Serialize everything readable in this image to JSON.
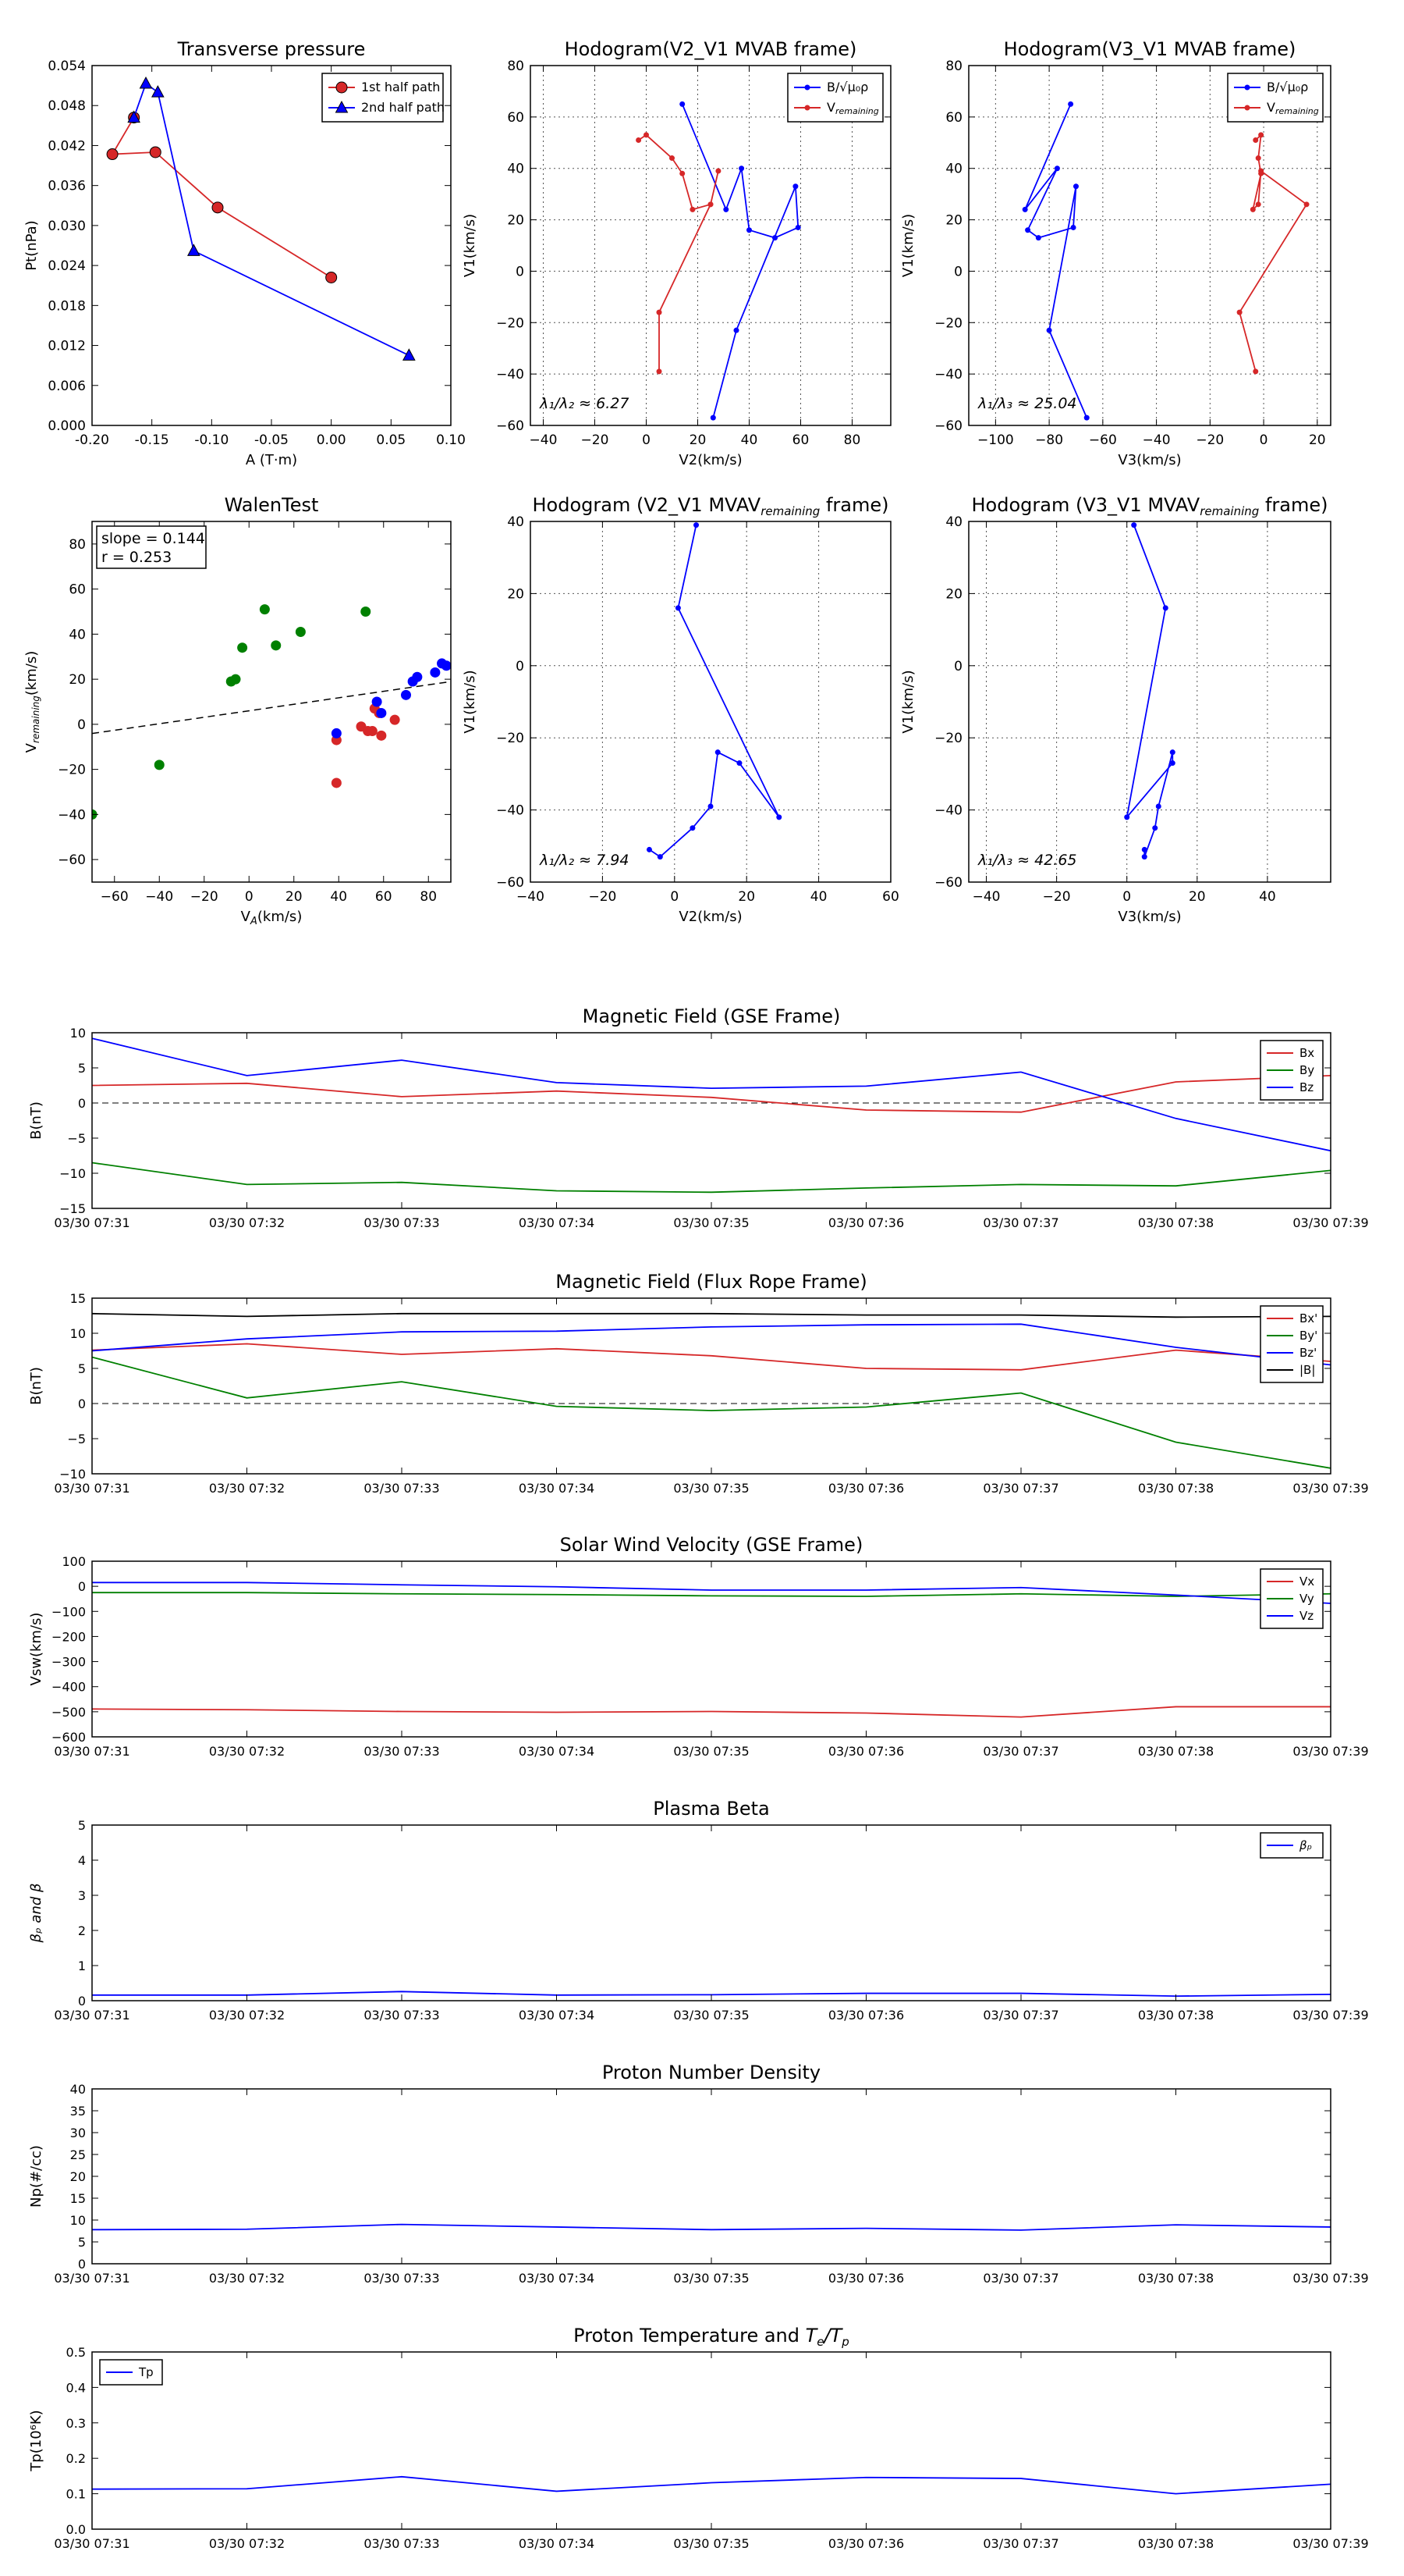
{
  "charts": {
    "c1": {
      "type": "line",
      "title": "Transverse pressure",
      "xlabel": "A (T·m)",
      "ylabel": "Pt(nPa)",
      "xlim": [
        -0.2,
        0.1
      ],
      "ylim": [
        0.0,
        0.054
      ],
      "xticks": [
        -0.2,
        -0.15,
        -0.1,
        -0.05,
        0.0,
        0.05,
        0.1
      ],
      "xtick_labels": [
        "-0.20",
        "-0.15",
        "-0.10",
        "-0.05",
        "0.00",
        "0.05",
        "0.10"
      ],
      "yticks": [
        0,
        0.006,
        0.012,
        0.018,
        0.024,
        0.03,
        0.036,
        0.042,
        0.048,
        0.054
      ],
      "ytick_labels": [
        "0.000",
        "0.006",
        "0.012",
        "0.018",
        "0.024",
        "0.030",
        "0.036",
        "0.042",
        "0.048",
        "0.054"
      ],
      "grid": false,
      "legend": "top-right",
      "series": [
        {
          "name": "1st half path",
          "color": "#d62728",
          "marker": "circle",
          "x": [
            0.0,
            -0.095,
            -0.147,
            -0.183,
            -0.165
          ],
          "y": [
            0.0222,
            0.0327,
            0.041,
            0.0407,
            0.0462
          ]
        },
        {
          "name": "2nd half path",
          "color": "#0000ff",
          "marker": "triangle",
          "x": [
            -0.165,
            -0.155,
            -0.145,
            -0.115,
            0.065
          ],
          "y": [
            0.0462,
            0.0513,
            0.05,
            0.0262,
            0.0105
          ]
        }
      ]
    },
    "c2": {
      "type": "line",
      "title": "Hodogram(V2_V1 MVAB frame)",
      "xlabel": "V2(km/s)",
      "ylabel": "V1(km/s)",
      "xlim": [
        -45,
        95
      ],
      "ylim": [
        -60,
        80
      ],
      "xticks": [
        -40,
        -20,
        0,
        20,
        40,
        60,
        80
      ],
      "xtick_labels": [
        "−40",
        "−20",
        "0",
        "20",
        "40",
        "60",
        "80"
      ],
      "yticks": [
        -60,
        -40,
        -20,
        0,
        20,
        40,
        60,
        80
      ],
      "ytick_labels": [
        "−60",
        "−40",
        "−20",
        "0",
        "20",
        "40",
        "60",
        "80"
      ],
      "grid": true,
      "legend": "top-right",
      "annotation": "λ₁/λ₂ ≈ 6.27",
      "series": [
        {
          "name": "B/√μ₀ρ",
          "color": "#0000ff",
          "marker": "dot",
          "x": [
            14,
            31,
            37,
            40,
            50,
            59,
            58,
            35,
            26
          ],
          "y": [
            65,
            24,
            40,
            16,
            13,
            17,
            33,
            -23,
            -57
          ]
        },
        {
          "name": "V_remaining",
          "color": "#d62728",
          "marker": "dot",
          "x": [
            -3,
            0,
            10,
            14,
            18,
            25,
            28,
            25,
            5,
            5
          ],
          "y": [
            51,
            53,
            44,
            38,
            24,
            26,
            39,
            26,
            -16,
            -39
          ]
        }
      ]
    },
    "c3": {
      "type": "line",
      "title": "Hodogram(V3_V1 MVAB frame)",
      "xlabel": "V3(km/s)",
      "ylabel": "V1(km/s)",
      "xlim": [
        -110,
        25
      ],
      "ylim": [
        -60,
        80
      ],
      "xticks": [
        -100,
        -80,
        -60,
        -40,
        -20,
        0,
        20
      ],
      "xtick_labels": [
        "−100",
        "−80",
        "−60",
        "−40",
        "−20",
        "0",
        "20"
      ],
      "yticks": [
        -60,
        -40,
        -20,
        0,
        20,
        40,
        60,
        80
      ],
      "ytick_labels": [
        "−60",
        "−40",
        "−20",
        "0",
        "20",
        "40",
        "60",
        "80"
      ],
      "grid": true,
      "legend": "top-right",
      "annotation": "λ₁/λ₃ ≈ 25.04",
      "series": [
        {
          "name": "B/√μ₀ρ",
          "color": "#0000ff",
          "marker": "dot",
          "x": [
            -72,
            -89,
            -77,
            -88,
            -84,
            -71,
            -70,
            -80,
            -66
          ],
          "y": [
            65,
            24,
            40,
            16,
            13,
            17,
            33,
            -23,
            -57
          ]
        },
        {
          "name": "V_remaining",
          "color": "#d62728",
          "marker": "dot",
          "x": [
            -3,
            -1,
            -2,
            -1,
            -4,
            -2,
            -1,
            16,
            -9,
            -3
          ],
          "y": [
            51,
            53,
            44,
            38,
            24,
            26,
            39,
            26,
            -16,
            -39
          ]
        }
      ]
    },
    "c4": {
      "type": "scatter",
      "title": "WalenTest",
      "xlabel": "V_A(km/s)",
      "ylabel": "V_remaining(km/s)",
      "xlim": [
        -70,
        90
      ],
      "ylim": [
        -70,
        90
      ],
      "xticks": [
        -60,
        -40,
        -20,
        0,
        20,
        40,
        60,
        80
      ],
      "xtick_labels": [
        "−60",
        "−40",
        "−20",
        "0",
        "20",
        "40",
        "60",
        "80"
      ],
      "yticks": [
        -60,
        -40,
        -20,
        0,
        20,
        40,
        60,
        80
      ],
      "ytick_labels": [
        "−60",
        "−40",
        "−20",
        "0",
        "20",
        "40",
        "60",
        "80"
      ],
      "grid": false,
      "annotation_lines": [
        "slope = 0.144",
        "r = 0.253"
      ],
      "fit_line": {
        "slope": 0.144,
        "intercept": 6
      },
      "series": [
        {
          "color": "#008000",
          "x": [
            -70,
            -40,
            -8,
            -6,
            -3,
            7,
            12,
            23,
            52
          ],
          "y": [
            -40,
            -18,
            19,
            20,
            34,
            51,
            35,
            41,
            50
          ]
        },
        {
          "color": "#d62728",
          "x": [
            39,
            39,
            50,
            53,
            55,
            56,
            58,
            59,
            65
          ],
          "y": [
            -26,
            -7,
            -1,
            -3,
            -3,
            7,
            5,
            -5,
            2
          ]
        },
        {
          "color": "#0000ff",
          "x": [
            39,
            57,
            59,
            70,
            73,
            75,
            83,
            86,
            88
          ],
          "y": [
            -4,
            10,
            5,
            13,
            19,
            21,
            23,
            27,
            26
          ]
        }
      ]
    },
    "c5": {
      "type": "line",
      "title": "Hodogram (V2_V1 MVAV_remaining frame)",
      "xlabel": "V2(km/s)",
      "ylabel": "V1(km/s)",
      "xlim": [
        -40,
        60
      ],
      "ylim": [
        -60,
        40
      ],
      "xticks": [
        -40,
        -20,
        0,
        20,
        40,
        60
      ],
      "xtick_labels": [
        "−40",
        "−20",
        "0",
        "20",
        "40",
        "60"
      ],
      "yticks": [
        -60,
        -40,
        -20,
        0,
        20,
        40
      ],
      "ytick_labels": [
        "−60",
        "−40",
        "−20",
        "0",
        "20",
        "40"
      ],
      "grid": true,
      "annotation": "λ₁/λ₂ ≈ 7.94",
      "series": [
        {
          "color": "#0000ff",
          "marker": "dot",
          "x": [
            6,
            1,
            29,
            18,
            12,
            10,
            5,
            -4,
            -7
          ],
          "y": [
            39,
            16,
            -42,
            -27,
            -24,
            -39,
            -45,
            -53,
            -51
          ]
        }
      ]
    },
    "c6": {
      "type": "line",
      "title": "Hodogram (V3_V1 MVAV_remaining frame)",
      "xlabel": "V3(km/s)",
      "ylabel": "V1(km/s)",
      "xlim": [
        -45,
        58
      ],
      "ylim": [
        -60,
        40
      ],
      "xticks": [
        -40,
        -20,
        0,
        20,
        40
      ],
      "xtick_labels": [
        "−40",
        "−20",
        "0",
        "20",
        "40"
      ],
      "yticks": [
        -60,
        -40,
        -20,
        0,
        20,
        40
      ],
      "ytick_labels": [
        "−60",
        "−40",
        "−20",
        "0",
        "20",
        "40"
      ],
      "grid": true,
      "annotation": "λ₁/λ₃ ≈ 42.65",
      "series": [
        {
          "color": "#0000ff",
          "marker": "dot",
          "x": [
            2,
            11,
            0,
            13,
            13,
            9,
            8,
            5,
            5
          ],
          "y": [
            39,
            16,
            -42,
            -27,
            -24,
            -39,
            -45,
            -53,
            -51
          ]
        }
      ]
    },
    "c7": {
      "type": "line",
      "title": "Magnetic Field (GSE Frame)",
      "ylabel": "B(nT)",
      "xlim": [
        0,
        8
      ],
      "ylim": [
        -15,
        10
      ],
      "yticks": [
        -15,
        -10,
        -5,
        0,
        5,
        10
      ],
      "ytick_labels": [
        "−15",
        "−10",
        "−5",
        "0",
        "5",
        "10"
      ],
      "zero_line": true,
      "legend": "top-right",
      "series": [
        {
          "name": "Bx",
          "color": "#d62728",
          "values": [
            2.5,
            2.8,
            0.9,
            1.7,
            0.8,
            -1.0,
            -1.3,
            3.0,
            3.9
          ]
        },
        {
          "name": "By",
          "color": "#008000",
          "values": [
            -8.5,
            -11.6,
            -11.3,
            -12.5,
            -12.7,
            -12.1,
            -11.6,
            -11.8,
            -9.6
          ]
        },
        {
          "name": "Bz",
          "color": "#0000ff",
          "values": [
            9.2,
            3.9,
            6.1,
            2.9,
            2.1,
            2.4,
            4.4,
            -2.2,
            -6.8
          ]
        }
      ]
    },
    "c8": {
      "type": "line",
      "title": "Magnetic Field (Flux Rope Frame)",
      "ylabel": "B(nT)",
      "xlim": [
        0,
        8
      ],
      "ylim": [
        -10,
        15
      ],
      "yticks": [
        -10,
        -5,
        0,
        5,
        10,
        15
      ],
      "ytick_labels": [
        "−10",
        "−5",
        "0",
        "5",
        "10",
        "15"
      ],
      "zero_line": true,
      "legend": "top-right",
      "series": [
        {
          "name": "Bx'",
          "color": "#d62728",
          "values": [
            7.6,
            8.5,
            7.0,
            7.8,
            6.8,
            5.0,
            4.8,
            7.6,
            6.0
          ]
        },
        {
          "name": "By'",
          "color": "#008000",
          "values": [
            6.6,
            0.8,
            3.1,
            -0.4,
            -1.0,
            -0.5,
            1.5,
            -5.5,
            -9.2
          ]
        },
        {
          "name": "Bz'",
          "color": "#0000ff",
          "values": [
            7.5,
            9.2,
            10.2,
            10.3,
            10.9,
            11.2,
            11.3,
            8.0,
            5.5
          ]
        },
        {
          "name": "|B|",
          "color": "#000000",
          "values": [
            12.8,
            12.4,
            12.8,
            12.8,
            12.8,
            12.6,
            12.6,
            12.3,
            12.4
          ]
        }
      ]
    },
    "c9": {
      "type": "line",
      "title": "Solar Wind Velocity (GSE Frame)",
      "ylabel": "Vsw(km/s)",
      "xlim": [
        0,
        8
      ],
      "ylim": [
        -600,
        100
      ],
      "yticks": [
        -600,
        -500,
        -400,
        -300,
        -200,
        -100,
        0,
        100
      ],
      "ytick_labels": [
        "−600",
        "−500",
        "−400",
        "−300",
        "−200",
        "−100",
        "0",
        "100"
      ],
      "legend": "top-right",
      "series": [
        {
          "name": "Vx",
          "color": "#d62728",
          "values": [
            -489,
            -492,
            -499,
            -502,
            -499,
            -505,
            -521,
            -480,
            -480
          ]
        },
        {
          "name": "Vy",
          "color": "#008000",
          "values": [
            -25,
            -25,
            -30,
            -33,
            -38,
            -40,
            -30,
            -40,
            -30
          ]
        },
        {
          "name": "Vz",
          "color": "#0000ff",
          "values": [
            15,
            15,
            6,
            -2,
            -15,
            -15,
            -5,
            -35,
            -68
          ]
        }
      ]
    },
    "c10": {
      "type": "line",
      "title": "Plasma Beta",
      "ylabel": "β_p and β",
      "xlim": [
        0,
        8
      ],
      "ylim": [
        0,
        5
      ],
      "yticks": [
        0,
        1,
        2,
        3,
        4,
        5
      ],
      "ytick_labels": [
        "0",
        "1",
        "2",
        "3",
        "4",
        "5"
      ],
      "legend": "top-right",
      "series": [
        {
          "name": "β_p",
          "color": "#0000ff",
          "values": [
            0.16,
            0.16,
            0.26,
            0.16,
            0.17,
            0.21,
            0.21,
            0.13,
            0.18
          ]
        }
      ]
    },
    "c11": {
      "type": "line",
      "title": "Proton Number Density",
      "ylabel": "Np(#/cc)",
      "xlim": [
        0,
        8
      ],
      "ylim": [
        0,
        40
      ],
      "yticks": [
        0,
        5,
        10,
        15,
        20,
        25,
        30,
        35,
        40
      ],
      "ytick_labels": [
        "0",
        "5",
        "10",
        "15",
        "20",
        "25",
        "30",
        "35",
        "40"
      ],
      "series": [
        {
          "name": "Np",
          "color": "#0000ff",
          "values": [
            7.8,
            7.9,
            9.0,
            8.4,
            7.8,
            8.1,
            7.7,
            8.9,
            8.4
          ]
        }
      ]
    },
    "c12": {
      "type": "line",
      "title": "Proton Temperature and T_e/T_p",
      "ylabel": "Tp(10⁶K)",
      "xlim": [
        0,
        8
      ],
      "ylim": [
        0,
        0.5
      ],
      "yticks": [
        0,
        0.1,
        0.2,
        0.3,
        0.4,
        0.5
      ],
      "ytick_labels": [
        "0.0",
        "0.1",
        "0.2",
        "0.3",
        "0.4",
        "0.5"
      ],
      "legend": "top-left",
      "series": [
        {
          "name": "Tp",
          "color": "#0000ff",
          "values": [
            0.113,
            0.114,
            0.148,
            0.107,
            0.131,
            0.146,
            0.143,
            0.1,
            0.127
          ]
        }
      ]
    }
  },
  "time_ticks": [
    "03/30 07:31",
    "03/30 07:32",
    "03/30 07:33",
    "03/30 07:34",
    "03/30 07:35",
    "03/30 07:36",
    "03/30 07:37",
    "03/30 07:38",
    "03/30 07:39"
  ]
}
